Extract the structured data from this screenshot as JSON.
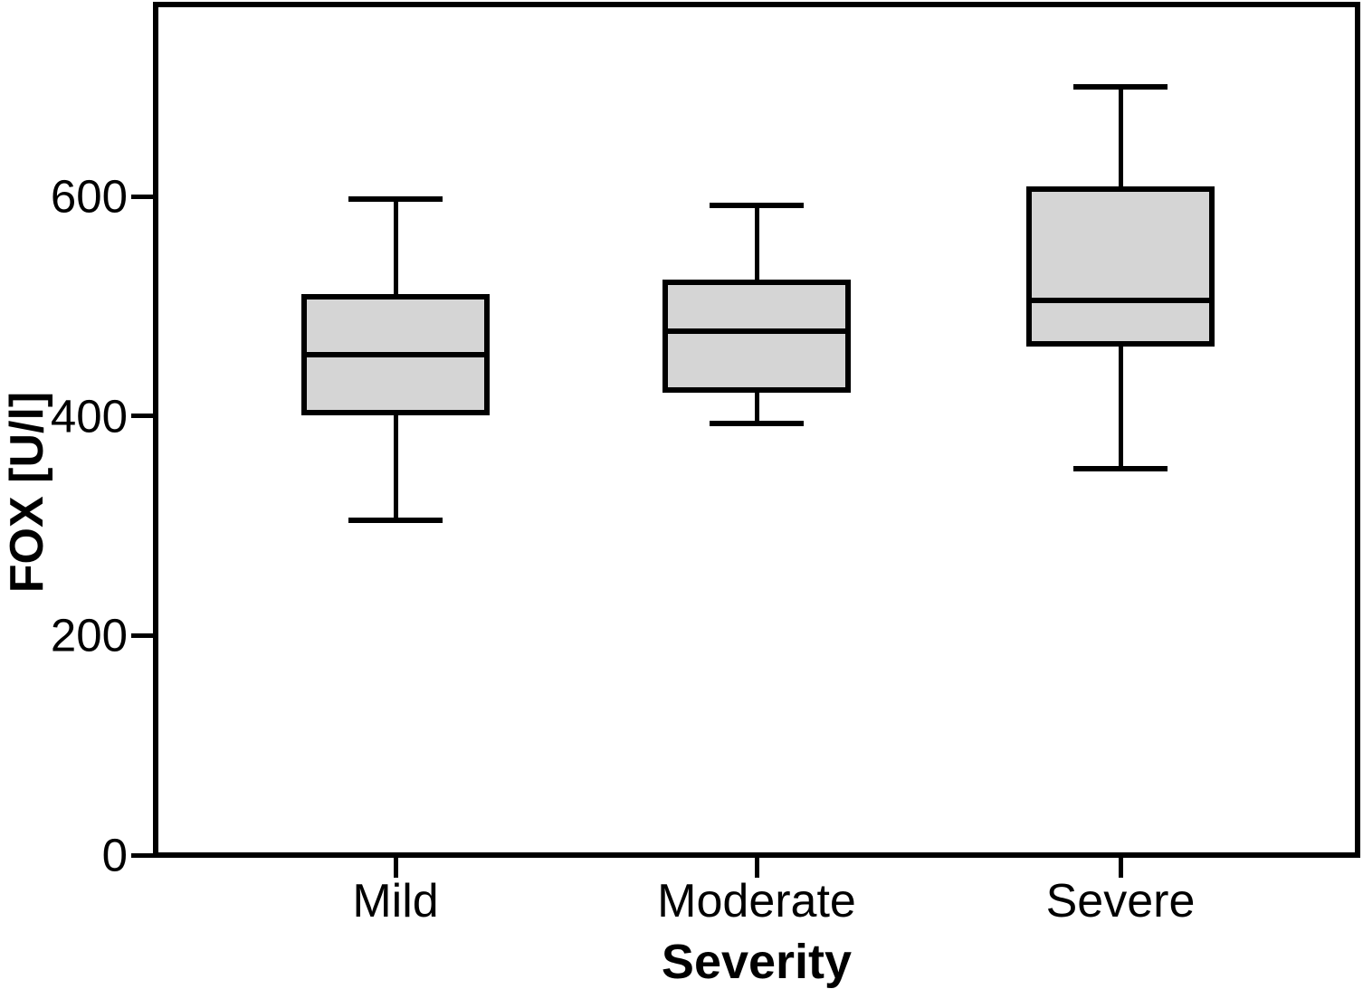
{
  "chart_data": {
    "type": "boxplot",
    "title": "",
    "xlabel": "Severity",
    "ylabel": "FOX [U/l]",
    "categories": [
      "Mild",
      "Moderate",
      "Severe"
    ],
    "ytick_labels": [
      "0",
      "200",
      "400",
      "600"
    ],
    "ytick_values": [
      0,
      200,
      400,
      600
    ],
    "ylim": [
      0,
      775
    ],
    "grid": false,
    "series": [
      {
        "category": "Mild",
        "whisker_low": 305,
        "q1": 403,
        "median": 456,
        "q3": 509,
        "whisker_high": 598
      },
      {
        "category": "Moderate",
        "whisker_low": 393,
        "q1": 424,
        "median": 477,
        "q3": 522,
        "whisker_high": 592
      },
      {
        "category": "Severe",
        "whisker_low": 352,
        "q1": 466,
        "median": 505,
        "q3": 607,
        "whisker_high": 700
      }
    ],
    "colors": {
      "box_fill": "#d5d5d5",
      "line": "#000000",
      "background": "#ffffff"
    }
  }
}
